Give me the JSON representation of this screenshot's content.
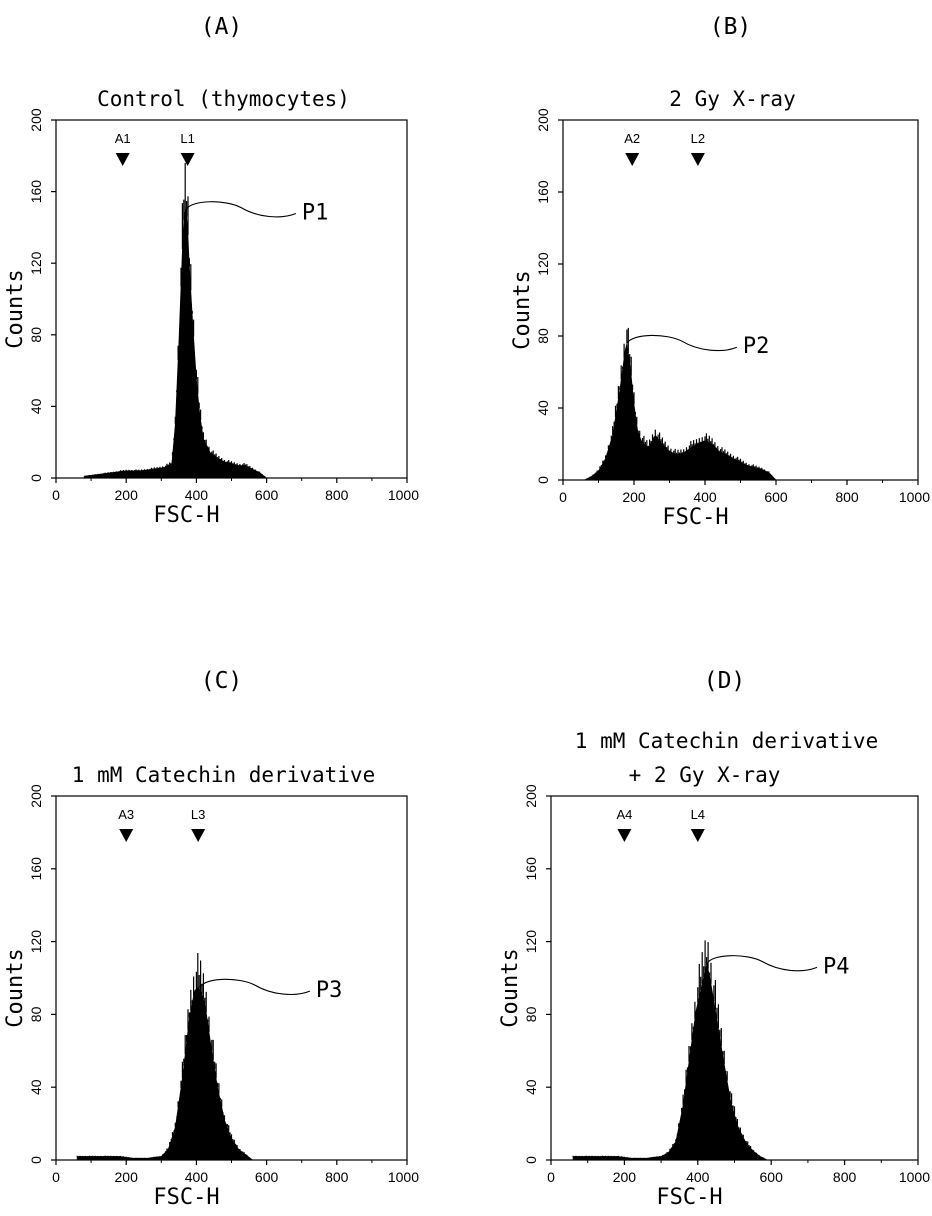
{
  "chart_data": [
    {
      "type": "bar",
      "panel_label": "(A)",
      "title": "Control (thymocytes)",
      "xlabel": "FSC-H",
      "ylabel": "Counts",
      "xlim": [
        0,
        1000
      ],
      "ylim": [
        0,
        200
      ],
      "xticks": [
        "0",
        "200",
        "400",
        "600",
        "800",
        "1000"
      ],
      "yticks": [
        "0",
        "40",
        "80",
        "120",
        "160",
        "200"
      ],
      "markers": [
        {
          "label": "A1",
          "x": 190
        },
        {
          "label": "L1",
          "x": 375
        }
      ],
      "peak": {
        "label": "P1",
        "x": 370,
        "y": 150
      },
      "histogram": {
        "x": [
          80,
          120,
          160,
          200,
          240,
          280,
          310,
          330,
          340,
          350,
          360,
          365,
          370,
          375,
          380,
          390,
          400,
          410,
          420,
          440,
          460,
          480,
          500,
          520,
          540,
          560,
          580,
          600
        ],
        "values": [
          1,
          2,
          3,
          4,
          4,
          5,
          6,
          8,
          30,
          75,
          128,
          148,
          150,
          140,
          118,
          85,
          55,
          35,
          22,
          14,
          11,
          9,
          8,
          7,
          7,
          5,
          3,
          0
        ]
      }
    },
    {
      "type": "bar",
      "panel_label": "(B)",
      "title": "2 Gy X-ray",
      "xlabel": "FSC-H",
      "ylabel": "Counts",
      "xlim": [
        0,
        1000
      ],
      "ylim": [
        0,
        200
      ],
      "xticks": [
        "0",
        "200",
        "400",
        "600",
        "800",
        "1000"
      ],
      "yticks": [
        "0",
        "40",
        "80",
        "120",
        "160",
        "200"
      ],
      "markers": [
        {
          "label": "A2",
          "x": 195
        },
        {
          "label": "L2",
          "x": 380
        }
      ],
      "peak": {
        "label": "P2",
        "x": 180,
        "y": 76
      },
      "histogram": {
        "x": [
          60,
          80,
          100,
          120,
          140,
          160,
          175,
          180,
          190,
          200,
          210,
          220,
          240,
          260,
          280,
          300,
          320,
          340,
          360,
          380,
          400,
          420,
          440,
          460,
          480,
          500,
          520,
          540,
          560,
          580,
          600
        ],
        "values": [
          0,
          2,
          5,
          12,
          25,
          50,
          72,
          76,
          62,
          42,
          28,
          22,
          18,
          25,
          20,
          16,
          14,
          15,
          18,
          20,
          22,
          20,
          16,
          14,
          12,
          10,
          8,
          7,
          6,
          4,
          0
        ]
      }
    },
    {
      "type": "bar",
      "panel_label": "(C)",
      "title": "1 mM Catechin derivative",
      "xlabel": "FSC-H",
      "ylabel": "Counts",
      "xlim": [
        0,
        1000
      ],
      "ylim": [
        0,
        200
      ],
      "xticks": [
        "0",
        "200",
        "400",
        "600",
        "800",
        "1000"
      ],
      "yticks": [
        "0",
        "40",
        "80",
        "120",
        "160",
        "200"
      ],
      "markers": [
        {
          "label": "A3",
          "x": 200
        },
        {
          "label": "L3",
          "x": 405
        }
      ],
      "peak": {
        "label": "P3",
        "x": 410,
        "y": 95
      },
      "histogram": {
        "x": [
          60,
          100,
          140,
          180,
          220,
          260,
          300,
          320,
          340,
          360,
          380,
          395,
          405,
          415,
          425,
          440,
          460,
          480,
          500,
          520,
          540,
          560
        ],
        "values": [
          2,
          2,
          2,
          2,
          1,
          1,
          2,
          6,
          18,
          45,
          78,
          93,
          95,
          92,
          85,
          65,
          40,
          22,
          12,
          6,
          3,
          0
        ]
      }
    },
    {
      "type": "bar",
      "panel_label": "(D)",
      "title": "1 mM Catechin derivative",
      "title_line2": "+ 2 Gy X-ray",
      "xlabel": "FSC-H",
      "ylabel": "Counts",
      "xlim": [
        0,
        1000
      ],
      "ylim": [
        0,
        200
      ],
      "xticks": [
        "0",
        "200",
        "400",
        "600",
        "800",
        "1000"
      ],
      "yticks": [
        "0",
        "40",
        "80",
        "120",
        "160",
        "200"
      ],
      "markers": [
        {
          "label": "A4",
          "x": 200
        },
        {
          "label": "L4",
          "x": 400
        }
      ],
      "peak": {
        "label": "P4",
        "x": 425,
        "y": 108
      },
      "histogram": {
        "x": [
          60,
          100,
          140,
          180,
          220,
          260,
          300,
          320,
          340,
          360,
          380,
          395,
          410,
          420,
          425,
          435,
          450,
          470,
          490,
          510,
          530,
          550,
          570,
          590
        ],
        "values": [
          2,
          2,
          2,
          2,
          1,
          1,
          2,
          4,
          10,
          30,
          60,
          82,
          95,
          104,
          108,
          98,
          80,
          55,
          32,
          18,
          10,
          5,
          2,
          0
        ]
      }
    }
  ]
}
